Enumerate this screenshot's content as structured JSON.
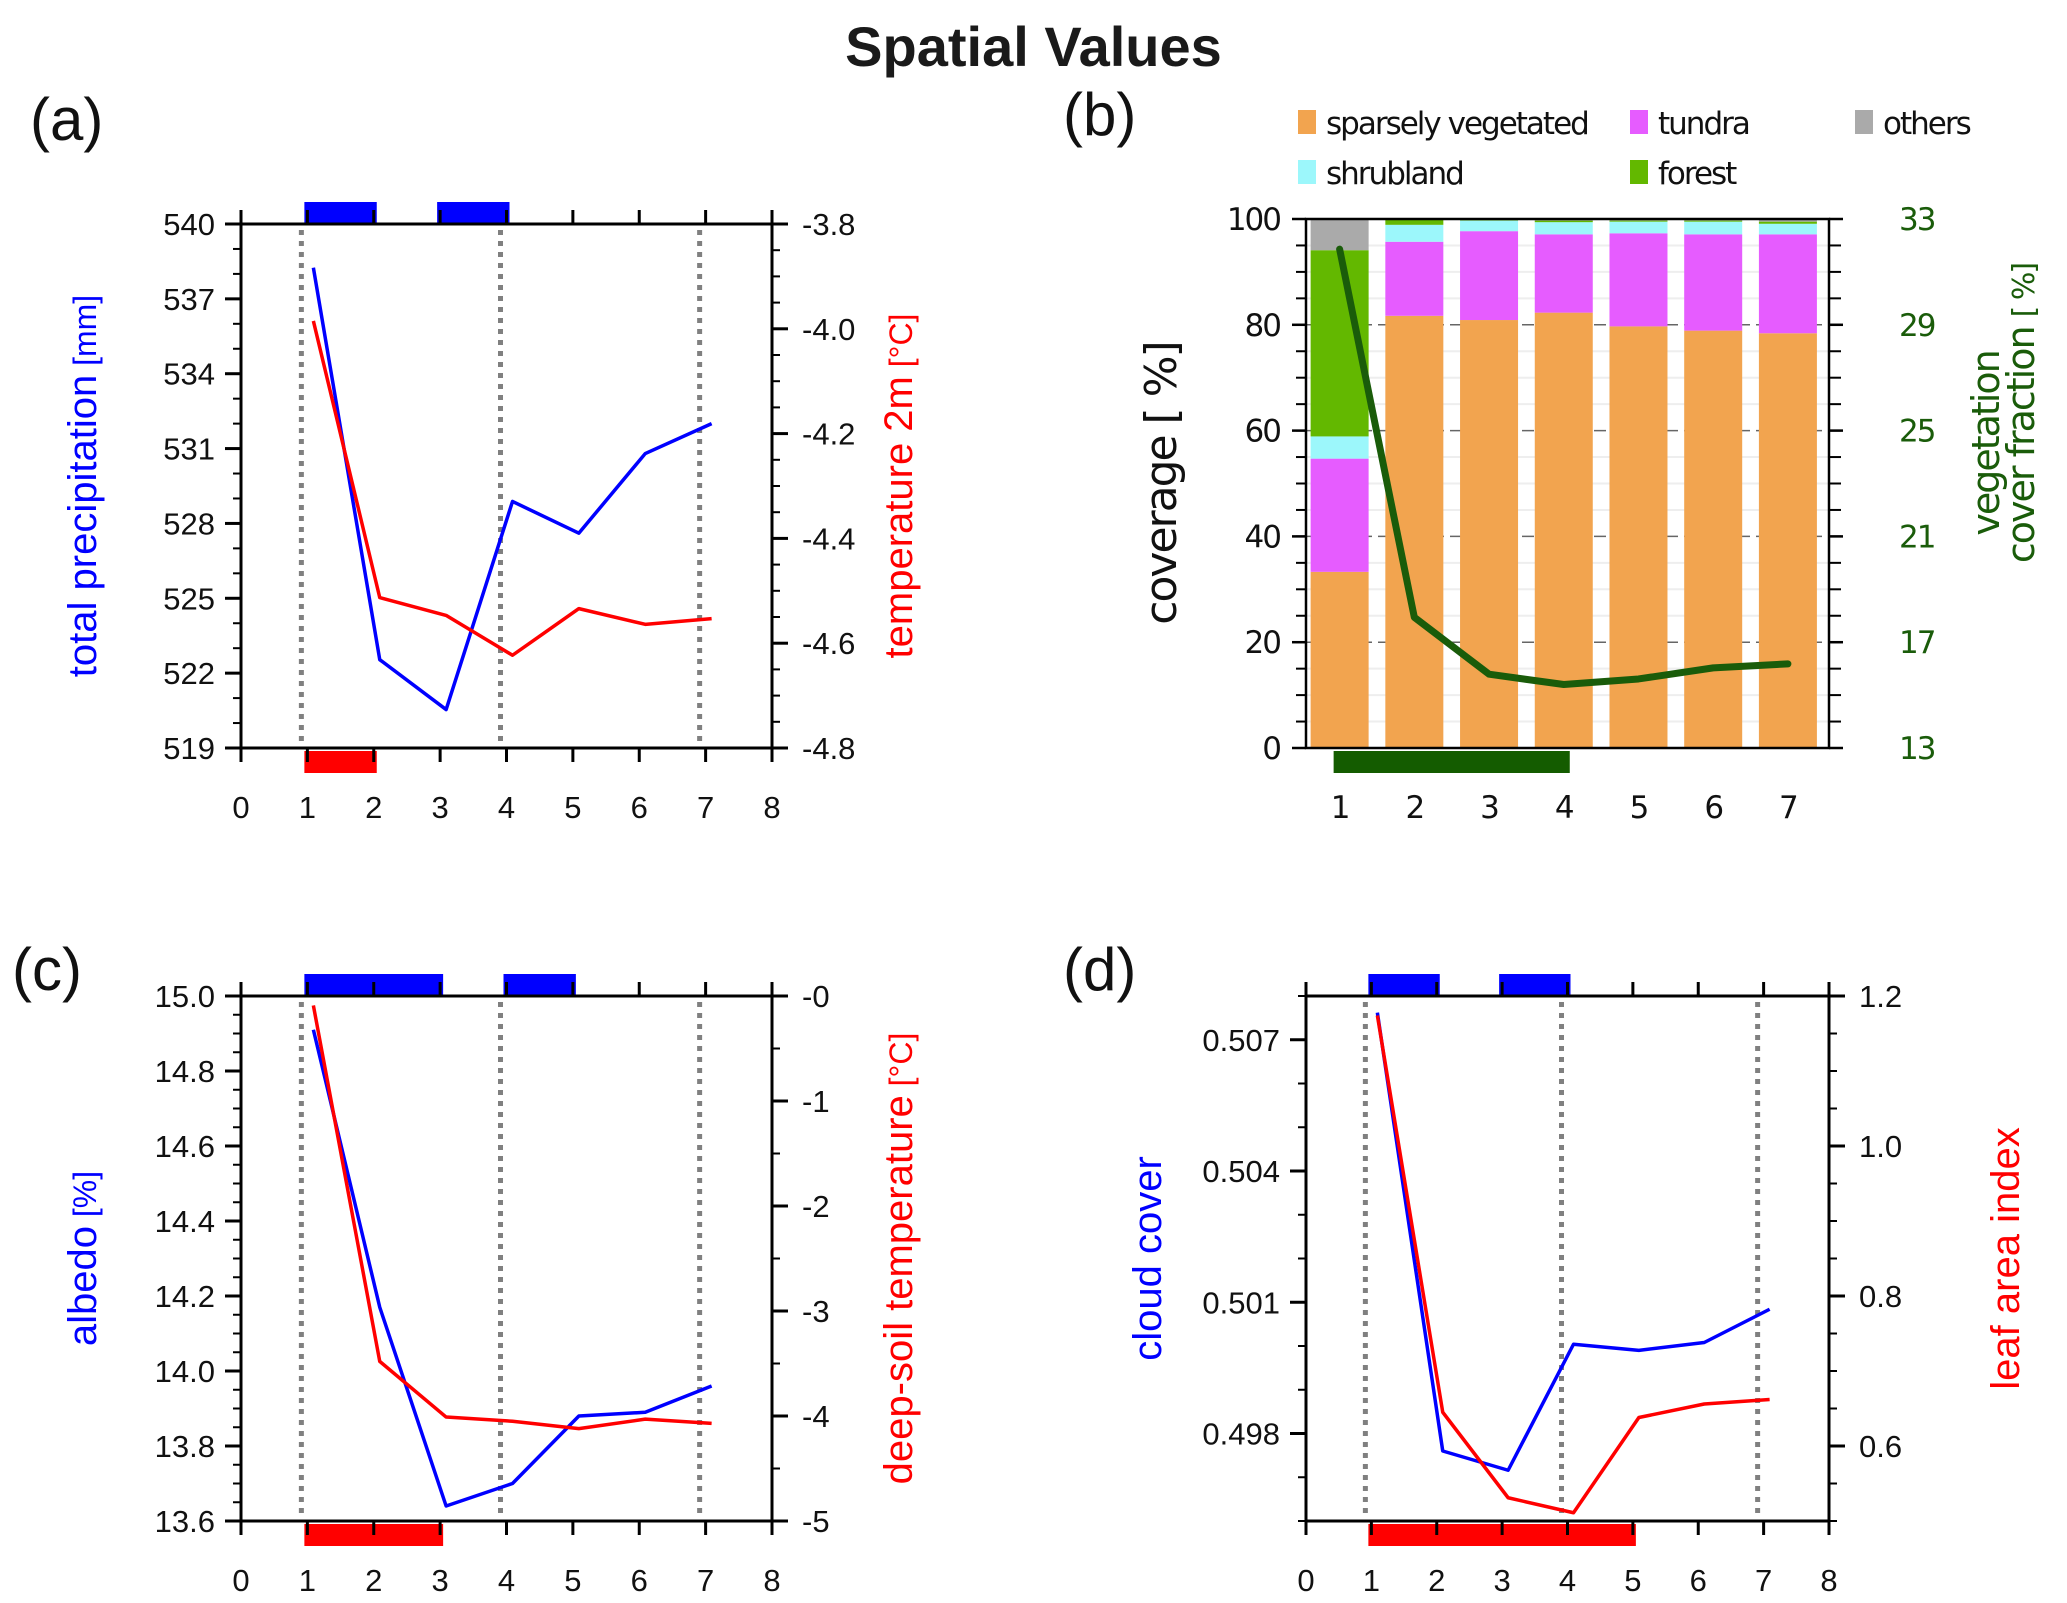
{
  "title": "Spatial Values",
  "chart_data": [
    {
      "id": "a",
      "panel_label": "(a)",
      "type": "line",
      "x": [
        1,
        2,
        3,
        4,
        5,
        6,
        7
      ],
      "xlim": [
        0,
        8
      ],
      "xticks": [
        "0",
        "1",
        "2",
        "3",
        "4",
        "5",
        "6",
        "7",
        "8"
      ],
      "left_axis": {
        "label": "total precipitation",
        "unit": "[mm]",
        "ylim": [
          519,
          540
        ],
        "ticks": [
          519,
          522,
          525,
          528,
          531,
          534,
          537,
          540
        ],
        "tick_labels": [
          "519",
          "522",
          "525",
          "528",
          "531",
          "534",
          "537",
          "540"
        ],
        "minor_step": 1
      },
      "right_axis": {
        "label": "temperature 2m",
        "unit": "[°C]",
        "ylim": [
          -4.8,
          -3.8
        ],
        "ticks": [
          -4.8,
          -4.6,
          -4.4,
          -4.2,
          -4.0,
          -3.8
        ],
        "tick_labels": [
          "-4.8",
          "-4.6",
          "-4.4",
          "-4.2",
          "-4.0",
          "-3.8"
        ],
        "minor_step": 0.05
      },
      "series": [
        {
          "name": "total precipitation",
          "axis": "left",
          "color": "#0000ff",
          "values": [
            538.25,
            522.54,
            520.54,
            528.88,
            527.61,
            530.8,
            532.0
          ]
        },
        {
          "name": "temperature 2m",
          "axis": "right",
          "color": "#ff0000",
          "values": [
            -3.985,
            -4.513,
            -4.547,
            -4.623,
            -4.534,
            -4.564,
            -4.553
          ]
        }
      ],
      "vlines": [
        1,
        4,
        7
      ],
      "top_bars": {
        "color": "#0000ff",
        "ranges": [
          [
            1,
            2
          ],
          [
            3,
            4
          ]
        ]
      },
      "bottom_bars": {
        "color": "#ff0000",
        "ranges": [
          [
            1,
            2
          ]
        ]
      }
    },
    {
      "id": "b",
      "panel_label": "(b)",
      "type": "bar",
      "stacked": true,
      "categories": [
        "1",
        "2",
        "3",
        "4",
        "5",
        "6",
        "7"
      ],
      "left_axis": {
        "label": "coverage",
        "unit": "[ %]",
        "ylim": [
          0,
          100
        ],
        "ticks": [
          0,
          20,
          40,
          60,
          80,
          100
        ],
        "tick_labels": [
          "0",
          "20",
          "40",
          "60",
          "80",
          "100"
        ],
        "minor_step": 5
      },
      "right_axis": {
        "label_line1": "vegetation",
        "label_line2": "cover  fraction",
        "unit": "[ %]",
        "ylim": [
          13,
          33
        ],
        "ticks": [
          13,
          17,
          21,
          25,
          29,
          33
        ],
        "tick_labels": [
          "13",
          "17",
          "21",
          "25",
          "29",
          "33"
        ],
        "color": "#1a5c0a"
      },
      "grid": "dashed at major ticks",
      "legend": {
        "placement": "top",
        "items": [
          {
            "label": "sparsely vegetated",
            "color": "#f2a44f"
          },
          {
            "label": "tundra",
            "color": "#e65cff"
          },
          {
            "label": "others",
            "color": "#aaaaaa"
          },
          {
            "label": "shrubland",
            "color": "#9cf7fb"
          },
          {
            "label": "forest",
            "color": "#63b800"
          }
        ]
      },
      "series": [
        {
          "name": "sparsely vegetated",
          "color": "#f2a44f",
          "values": [
            33.3,
            81.7,
            80.9,
            82.3,
            79.7,
            78.9,
            78.4
          ]
        },
        {
          "name": "tundra",
          "color": "#e65cff",
          "values": [
            21.4,
            14.0,
            16.8,
            14.8,
            17.6,
            18.2,
            18.7
          ]
        },
        {
          "name": "shrubland",
          "color": "#9cf7fb",
          "values": [
            4.2,
            3.2,
            2.0,
            2.3,
            2.2,
            2.4,
            2.0
          ]
        },
        {
          "name": "forest",
          "color": "#63b800",
          "values": [
            35.2,
            1.1,
            0.1,
            0.3,
            0.2,
            0.2,
            0.4
          ]
        },
        {
          "name": "others",
          "color": "#aaaaaa",
          "values": [
            5.9,
            0.0,
            0.2,
            0.3,
            0.3,
            0.3,
            0.5
          ]
        }
      ],
      "line_series": {
        "name": "vegetation cover fraction",
        "axis": "right",
        "color": "#1a5c0a",
        "values": [
          31.86,
          17.94,
          15.79,
          15.4,
          15.61,
          16.03,
          16.18
        ]
      },
      "bottom_bars": {
        "color": "#145c00",
        "ranges": [
          [
            1,
            4
          ]
        ]
      }
    },
    {
      "id": "c",
      "panel_label": "(c)",
      "type": "line",
      "x": [
        1,
        2,
        3,
        4,
        5,
        6,
        7
      ],
      "xlim": [
        0,
        8
      ],
      "xticks": [
        "0",
        "1",
        "2",
        "3",
        "4",
        "5",
        "6",
        "7",
        "8"
      ],
      "left_axis": {
        "label": "albedo",
        "unit": "[%]",
        "ylim": [
          13.6,
          15.0
        ],
        "ticks": [
          13.6,
          13.8,
          14.0,
          14.2,
          14.4,
          14.6,
          14.8,
          15.0
        ],
        "tick_labels": [
          "13.6",
          "13.8",
          "14.0",
          "14.2",
          "14.4",
          "14.6",
          "14.8",
          "15.0"
        ],
        "minor_step": 0.05
      },
      "right_axis": {
        "label": "deep-soil temperature",
        "unit": "[°C]",
        "ylim": [
          -5,
          0
        ],
        "ticks": [
          -5,
          -4,
          -3,
          -2,
          -1,
          0
        ],
        "tick_labels": [
          "-5",
          "-4",
          "-3",
          "-2",
          "-1",
          "-0"
        ],
        "minor_step": 0.5
      },
      "series": [
        {
          "name": "albedo",
          "axis": "left",
          "color": "#0000ff",
          "values": [
            14.91,
            14.17,
            13.64,
            13.7,
            13.88,
            13.89,
            13.96
          ]
        },
        {
          "name": "deep-soil temperature",
          "axis": "right",
          "color": "#ff0000",
          "values": [
            -0.09,
            -3.48,
            -4.01,
            -4.05,
            -4.12,
            -4.03,
            -4.07
          ]
        }
      ],
      "vlines": [
        1,
        4,
        7
      ],
      "top_bars": {
        "color": "#0000ff",
        "ranges": [
          [
            1,
            2
          ],
          [
            2,
            3
          ],
          [
            4,
            5
          ]
        ]
      },
      "bottom_bars": {
        "color": "#ff0000",
        "ranges": [
          [
            1,
            2
          ],
          [
            2,
            3
          ]
        ]
      }
    },
    {
      "id": "d",
      "panel_label": "(d)",
      "type": "line",
      "x": [
        1,
        2,
        3,
        4,
        5,
        6,
        7
      ],
      "xlim": [
        0,
        8
      ],
      "xticks": [
        "0",
        "1",
        "2",
        "3",
        "4",
        "5",
        "6",
        "7",
        "8"
      ],
      "left_axis": {
        "label": "cloud cover",
        "unit": "",
        "ylim": [
          0.496,
          0.508
        ],
        "ticks": [
          0.498,
          0.501,
          0.504,
          0.507
        ],
        "tick_labels": [
          "0.498",
          "0.501",
          "0.504",
          "0.507"
        ],
        "minor_step": 0.001
      },
      "right_axis": {
        "label": "leaf area index",
        "unit": "",
        "ylim": [
          0.5,
          1.2
        ],
        "ticks": [
          0.6,
          0.8,
          1.0,
          1.2
        ],
        "tick_labels": [
          "0.6",
          "0.8",
          "1.0",
          "1.2"
        ],
        "minor_step": 0.05
      },
      "series": [
        {
          "name": "cloud cover",
          "axis": "left",
          "color": "#0000ff",
          "values": [
            0.50762,
            0.4976,
            0.49716,
            0.50004,
            0.4999,
            0.50008,
            0.50084
          ]
        },
        {
          "name": "leaf area index",
          "axis": "right",
          "color": "#ff0000",
          "values": [
            1.174,
            0.645,
            0.531,
            0.511,
            0.638,
            0.656,
            0.662
          ]
        }
      ],
      "vlines": [
        1,
        4,
        7
      ],
      "top_bars": {
        "color": "#0000ff",
        "ranges": [
          [
            1,
            2
          ],
          [
            3,
            4
          ]
        ]
      },
      "bottom_bars": {
        "color": "#ff0000",
        "ranges": [
          [
            1,
            2
          ],
          [
            2,
            3
          ],
          [
            3,
            4
          ],
          [
            4,
            5
          ]
        ]
      }
    }
  ]
}
